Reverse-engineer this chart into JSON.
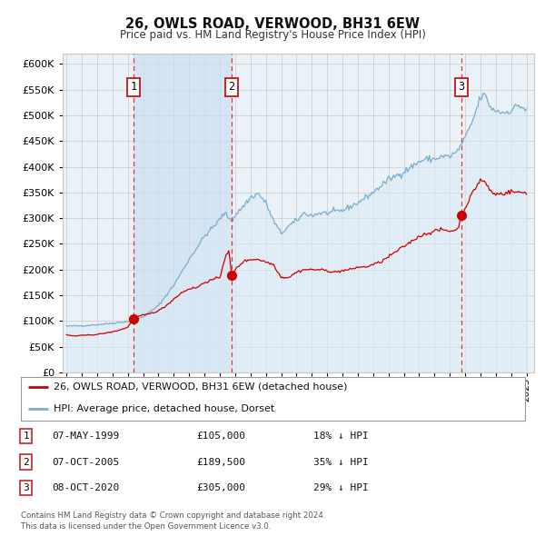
{
  "title": "26, OWLS ROAD, VERWOOD, BH31 6EW",
  "subtitle": "Price paid vs. HM Land Registry's House Price Index (HPI)",
  "legend_line1": "26, OWLS ROAD, VERWOOD, BH31 6EW (detached house)",
  "legend_line2": "HPI: Average price, detached house, Dorset",
  "footer_line1": "Contains HM Land Registry data © Crown copyright and database right 2024.",
  "footer_line2": "This data is licensed under the Open Government Licence v3.0.",
  "sale_color": "#cc0000",
  "hpi_color": "#7aadce",
  "hpi_fill_color": "#daeaf5",
  "hpi_fill_alpha": 0.55,
  "shade_region_color": "#ccdff0",
  "shade_region_alpha": 0.7,
  "background_color": "#ffffff",
  "plot_bg_color": "#eaf2f8",
  "grid_color": "#c8c8c8",
  "vline_color": "#ee3333",
  "ylim": [
    0,
    620000
  ],
  "ytick_step": 50000,
  "ytick_max": 600000,
  "x_min": 1994.75,
  "x_max": 2025.5,
  "trans_years": [
    1999.36,
    2005.77,
    2020.77
  ],
  "trans_prices": [
    105000,
    189500,
    305000
  ],
  "trans_nums": [
    1,
    2,
    3
  ],
  "table_rows": [
    {
      "num": 1,
      "date_str": "07-MAY-1999",
      "price_str": "£105,000",
      "pct_str": "18% ↓ HPI"
    },
    {
      "num": 2,
      "date_str": "07-OCT-2005",
      "price_str": "£189,500",
      "pct_str": "35% ↓ HPI"
    },
    {
      "num": 3,
      "date_str": "08-OCT-2020",
      "price_str": "£305,000",
      "pct_str": "29% ↓ HPI"
    }
  ]
}
